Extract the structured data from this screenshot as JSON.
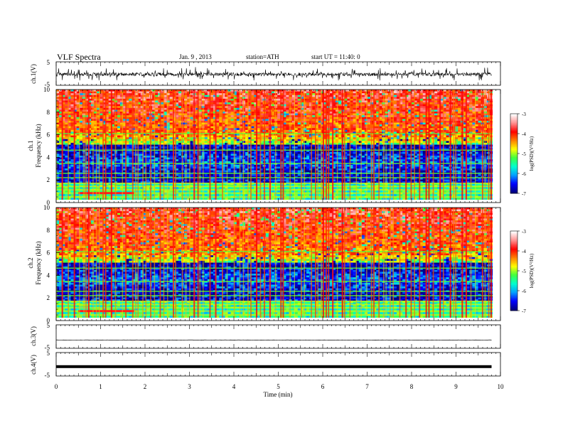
{
  "header": {
    "title": "VLF  Spectra",
    "date": "Jan. 9  , 2013",
    "station": "station=ATH",
    "start": "start  UT  =   11:40: 0"
  },
  "chart_data": {
    "type": "heatmap",
    "x_axis": {
      "label": "Time  (min)",
      "range": [
        0,
        10
      ],
      "ticks": [
        0,
        1,
        2,
        3,
        4,
        5,
        6,
        7,
        8,
        9,
        10
      ],
      "data_end": 9.8
    },
    "panels": [
      {
        "id": "ch1-waveform",
        "type": "line",
        "ylabel": "ch.1(V)",
        "ylim": [
          -5,
          5
        ],
        "yticks": [
          "5",
          "-5"
        ],
        "trace": "noisy broadband signal, baseline about -0.3 V with spikes between -2.8 and 2.8 V"
      },
      {
        "id": "ch1-spectrogram",
        "type": "heatmap",
        "ylabel": "ch.1\nFrequency  (kHz)",
        "ylim": [
          0,
          10
        ],
        "yticks": [
          0,
          2,
          4,
          6,
          8,
          10
        ],
        "colorbar": {
          "label": "log(PSD)(V²/Hz)",
          "range": [
            -7,
            -3
          ],
          "ticks": [
            "-3",
            "-4",
            "-5",
            "-6",
            "-7"
          ]
        }
      },
      {
        "id": "ch2-spectrogram",
        "type": "heatmap",
        "ylabel": "ch.2\nFrequency  (kHz)",
        "ylim": [
          0,
          10
        ],
        "yticks": [
          0,
          2,
          4,
          6,
          8,
          10
        ],
        "colorbar": {
          "label": "log(PSD)(V²/Hz)",
          "range": [
            -7,
            -3
          ],
          "ticks": [
            "-3",
            "-4",
            "-5",
            "-6",
            "-7"
          ]
        }
      },
      {
        "id": "ch3-waveform",
        "type": "line",
        "ylabel": "ch.3(V)",
        "ylim": [
          -5,
          5
        ],
        "yticks": [
          "5",
          "-5"
        ],
        "trace": "flat line at about -1.5 V"
      },
      {
        "id": "ch4-waveform",
        "type": "line",
        "ylabel": "ch.4(V)",
        "ylim": [
          -5,
          5
        ],
        "yticks": [
          "5",
          "-5"
        ],
        "trace": "thick band at about -1 V"
      }
    ],
    "spectrogram_model": {
      "description": "background strongest at high frequency (red/yellow above ~6 kHz), dark blue band between ~1.5-5 kHz, bright narrowband lines below 2 kHz; vertical broadband sferic stripes throughout",
      "narrowband_lines_khz": [
        0.25,
        0.6,
        0.9,
        1.2,
        1.5,
        2.0,
        2.4,
        3.3,
        4.5,
        6.0
      ],
      "enhanced_low_band": {
        "f_khz": 0.6,
        "t_min": [
          0.5,
          1.75
        ]
      }
    }
  },
  "colors": {
    "colormap": [
      "#000080",
      "#0000ff",
      "#00a0ff",
      "#00ffd0",
      "#40ff40",
      "#ffff00",
      "#ff8000",
      "#ff0000",
      "#ff9090",
      "#ffffff"
    ],
    "axes": "#000000",
    "trace": "#000000"
  }
}
